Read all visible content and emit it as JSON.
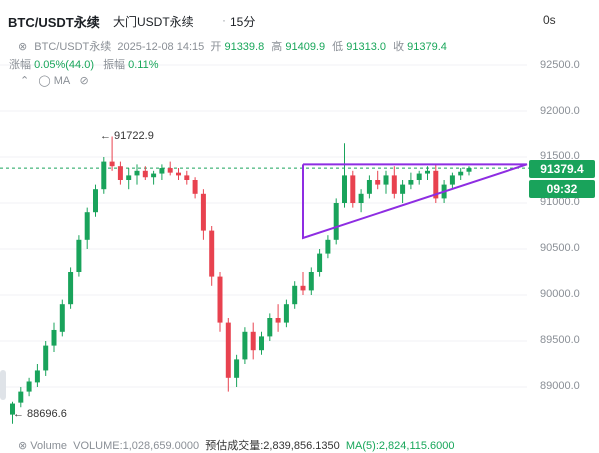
{
  "header": {
    "symbol": "BTC/USDT永续",
    "exchange": "大门USDT永续",
    "separator": "·",
    "interval": "15分",
    "countdown": "0s"
  },
  "ohlc": {
    "symbol": "BTC/USDT永续",
    "datetime": "2025-12-08 14:15",
    "open_label": "开",
    "open": "91339.8",
    "high_label": "高",
    "high": "91409.9",
    "low_label": "低",
    "low": "91313.0",
    "close_label": "收",
    "close": "91379.4"
  },
  "change": {
    "change_label": "涨幅",
    "change_value": "0.05%(44.0)",
    "amp_label": "振幅",
    "amp_value": "0.11%"
  },
  "tools": {
    "ma_label": "MA"
  },
  "yaxis": {
    "ticks": [
      "92500.0",
      "92000.0",
      "91500.0",
      "91000.0",
      "90500.0",
      "90000.0",
      "89500.0",
      "89000.0"
    ]
  },
  "price_tag": "91379.4",
  "time_tag": "09:32",
  "annotations": {
    "high_marker": "← 91722.9",
    "low_marker": "← 88696.6"
  },
  "volume": {
    "label": "Volume",
    "volume_text": "VOLUME:1,028,659.0000",
    "est_text": "预估成交量:2,839,856.1350",
    "ma_text": "MA(5):2,824,115.6000"
  },
  "colors": {
    "up": "#19a35b",
    "down": "#e8424f",
    "triangle": "#8e2de2",
    "accent": "#19a35b"
  },
  "chart_data": {
    "type": "candlestick",
    "series": [
      {
        "name": "candles",
        "values": [
          [
            88700,
            88840,
            88600,
            88820
          ],
          [
            88830,
            89000,
            88780,
            88950
          ],
          [
            88950,
            89100,
            88900,
            89060
          ],
          [
            89050,
            89250,
            89000,
            89180
          ],
          [
            89180,
            89500,
            89120,
            89450
          ],
          [
            89450,
            89700,
            89380,
            89620
          ],
          [
            89600,
            89950,
            89550,
            89900
          ],
          [
            89900,
            90300,
            89850,
            90250
          ],
          [
            90250,
            90650,
            90200,
            90600
          ],
          [
            90600,
            90950,
            90500,
            90900
          ],
          [
            90900,
            91200,
            90850,
            91150
          ],
          [
            91150,
            91500,
            91100,
            91450
          ],
          [
            91450,
            91722.9,
            91350,
            91400
          ],
          [
            91400,
            91450,
            91200,
            91250
          ],
          [
            91250,
            91380,
            91150,
            91300
          ],
          [
            91300,
            91420,
            91200,
            91350
          ],
          [
            91350,
            91400,
            91250,
            91280
          ],
          [
            91280,
            91350,
            91200,
            91320
          ],
          [
            91320,
            91420,
            91250,
            91380
          ],
          [
            91380,
            91450,
            91300,
            91330
          ],
          [
            91330,
            91380,
            91250,
            91300
          ],
          [
            91300,
            91350,
            91200,
            91250
          ],
          [
            91250,
            91280,
            91050,
            91100
          ],
          [
            91100,
            91150,
            90600,
            90700
          ],
          [
            90700,
            90750,
            90100,
            90200
          ],
          [
            90200,
            90250,
            89600,
            89700
          ],
          [
            89700,
            89750,
            88950,
            89100
          ],
          [
            89100,
            89350,
            89000,
            89300
          ],
          [
            89300,
            89650,
            89250,
            89600
          ],
          [
            89600,
            89700,
            89300,
            89400
          ],
          [
            89400,
            89600,
            89350,
            89550
          ],
          [
            89550,
            89800,
            89500,
            89750
          ],
          [
            89750,
            89900,
            89600,
            89700
          ],
          [
            89700,
            89950,
            89650,
            89900
          ],
          [
            89900,
            90150,
            89850,
            90100
          ],
          [
            90100,
            90250,
            90000,
            90050
          ],
          [
            90050,
            90300,
            90000,
            90250
          ],
          [
            90250,
            90500,
            90200,
            90450
          ],
          [
            90450,
            90650,
            90400,
            90600
          ],
          [
            90600,
            91050,
            90550,
            91000
          ],
          [
            91000,
            91650,
            90950,
            91300
          ],
          [
            91300,
            91350,
            90950,
            91000
          ],
          [
            91000,
            91150,
            90900,
            91100
          ],
          [
            91100,
            91300,
            91050,
            91250
          ],
          [
            91250,
            91350,
            91150,
            91200
          ],
          [
            91200,
            91350,
            91100,
            91300
          ],
          [
            91300,
            91400,
            91050,
            91100
          ],
          [
            91100,
            91250,
            91000,
            91200
          ],
          [
            91200,
            91330,
            91150,
            91250
          ],
          [
            91250,
            91350,
            91200,
            91320
          ],
          [
            91320,
            91400,
            91250,
            91350
          ],
          [
            91350,
            91420,
            91000,
            91050
          ],
          [
            91050,
            91250,
            91000,
            91200
          ],
          [
            91200,
            91330,
            91150,
            91300
          ],
          [
            91300,
            91380,
            91250,
            91340
          ],
          [
            91340,
            91400,
            91300,
            91379.4
          ]
        ]
      }
    ],
    "ylim": [
      88700,
      92700
    ],
    "y_ticks": [
      92500,
      92000,
      91500,
      91000,
      90500,
      90000,
      89500,
      89000
    ],
    "current_price": 91379.4,
    "high": 91722.9,
    "low": 88696.6
  }
}
